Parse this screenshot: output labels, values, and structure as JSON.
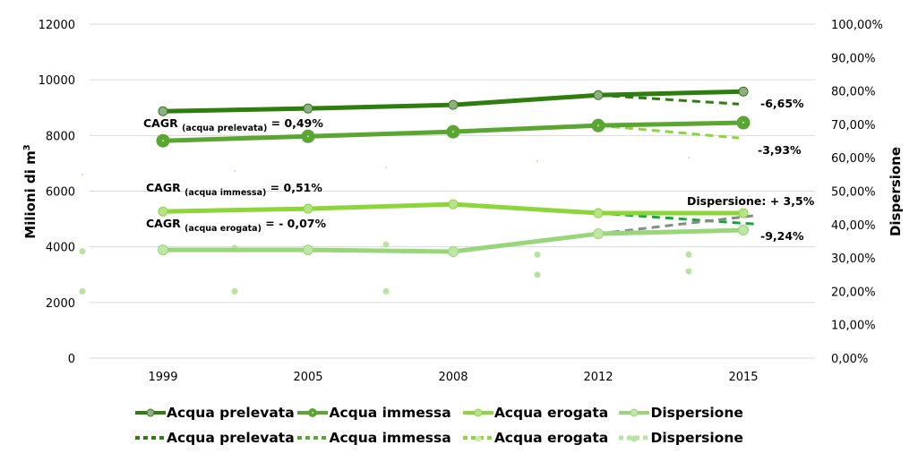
{
  "chart_data": {
    "type": "line",
    "categories": [
      "1999",
      "2005",
      "2008",
      "2012",
      "2015"
    ],
    "ylabel": "Milioni di m³",
    "ylabel_main": "Milioni di m",
    "ylabel_sup": "3",
    "y2label": "Dispersione",
    "ylim": [
      0,
      12000
    ],
    "y2lim": [
      0,
      100
    ],
    "yticks": [
      "0",
      "2000",
      "4000",
      "6000",
      "8000",
      "10000",
      "12000"
    ],
    "y2ticks": [
      "0,00%",
      "10,00%",
      "20,00%",
      "30,00%",
      "40,00%",
      "50,00%",
      "60,00%",
      "70,00%",
      "80,00%",
      "90,00%",
      "100,00%"
    ],
    "grid": true,
    "legend_position": "bottom",
    "series": [
      {
        "name": "Acqua prelevata",
        "color": "#2e7d0f",
        "marker_fill": "#8fae84",
        "values": [
          8870,
          8970,
          9100,
          9450,
          9580
        ]
      },
      {
        "name": "Acqua immessa",
        "color": "#5aa632",
        "marker_fill": "#5aa632",
        "values": [
          7810,
          7970,
          8135,
          8360,
          8460
        ]
      },
      {
        "name": "Acqua erogata",
        "color": "#8dd63a",
        "marker_fill": "#b5e38a",
        "values": [
          5270,
          5370,
          5530,
          5210,
          5210
        ]
      },
      {
        "name": "Dispersione",
        "color": "#99d67a",
        "marker_fill": "#bfe6a6",
        "values": [
          3890,
          3890,
          3830,
          4470,
          4600
        ]
      }
    ],
    "projections": [
      {
        "name": "Acqua prelevata",
        "color": "#2e7d0f",
        "from": [
          "2012",
          9450
        ],
        "to": 9130,
        "label": "-6,65%"
      },
      {
        "name": "Acqua immessa",
        "color": "#8dd63a",
        "from": [
          "2012",
          8360
        ],
        "to": 7910,
        "label": "-3,93%"
      },
      {
        "name": "Acqua erogata",
        "color": "#13a83d",
        "from": [
          "2012",
          5210
        ],
        "to": 4820,
        "label": "-9,24%"
      },
      {
        "name": "Dispersione",
        "color": "#8a8a8a",
        "from": [
          "2012",
          4470
        ],
        "to": 5120,
        "label": "Dispersione: + 3,5%"
      }
    ],
    "secondary_points": {
      "color": "#b9e3a0",
      "values": [
        [
          55,
          32,
          20
        ],
        [
          56,
          33,
          20
        ],
        [
          57,
          34,
          20
        ],
        [
          59,
          31,
          25
        ],
        [
          60,
          31,
          26
        ]
      ]
    },
    "annotations": [
      {
        "main": "CAGR ",
        "sub": "(acqua prelevata)",
        "tail": " = 0,49%"
      },
      {
        "main": "CAGR ",
        "sub": "(acqua immessa)",
        "tail": " = 0,51%"
      },
      {
        "main": "CAGR ",
        "sub": "(acqua erogata)",
        "tail": " = - 0,07%"
      }
    ]
  },
  "legend": {
    "row1": [
      "Acqua prelevata",
      "Acqua immessa",
      "Acqua erogata",
      "Dispersione"
    ],
    "row2": [
      "Acqua prelevata",
      "Acqua immessa",
      "Acqua erogata",
      "Dispersione"
    ]
  }
}
